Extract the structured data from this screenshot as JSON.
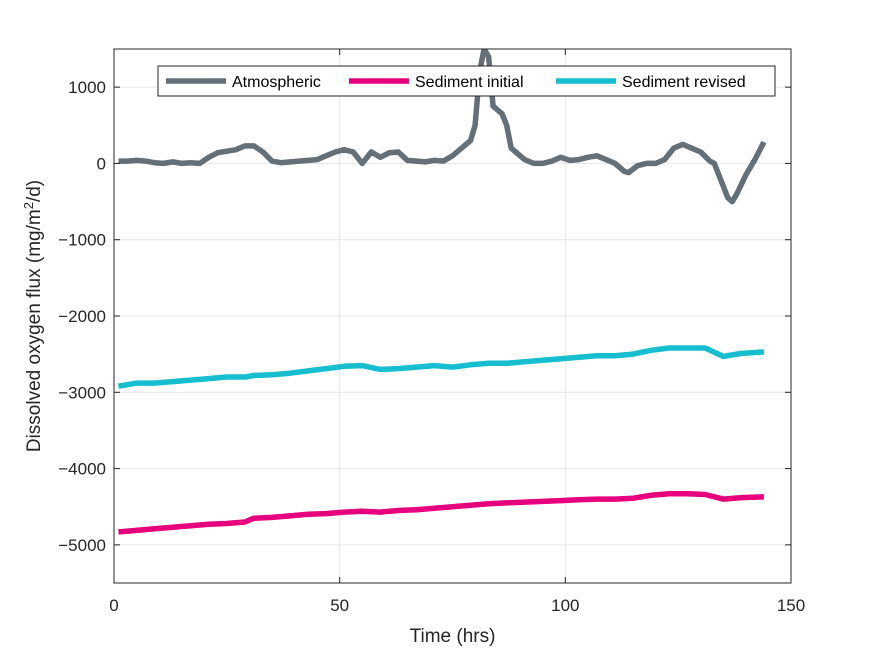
{
  "chart_data": {
    "type": "line",
    "title": "",
    "xlabel": "Time (hrs)",
    "ylabel": "Dissolved oxygen flux (mg/m²/d)",
    "xlim": [
      0,
      150
    ],
    "ylim": [
      -5500,
      1500
    ],
    "xticks": [
      0,
      50,
      100,
      150
    ],
    "yticks": [
      -5000,
      -4000,
      -3000,
      -2000,
      -1000,
      0,
      1000
    ],
    "grid": true,
    "legend_placement": "top, horizontal",
    "series": [
      {
        "name": "Atmospheric",
        "color": "#646f78",
        "x": [
          1,
          3,
          5,
          7,
          9,
          11,
          13,
          15,
          17,
          19,
          21,
          23,
          25,
          27,
          29,
          31,
          33,
          35,
          37,
          39,
          41,
          43,
          45,
          47,
          49,
          51,
          53,
          55,
          57,
          59,
          61,
          63,
          65,
          67,
          69,
          71,
          73,
          75,
          77,
          79,
          80,
          81,
          82,
          83,
          84,
          85,
          86,
          87,
          88,
          89,
          91,
          93,
          95,
          97,
          99,
          101,
          103,
          105,
          107,
          109,
          111,
          113,
          114,
          116,
          118,
          120,
          122,
          124,
          126,
          128,
          130,
          132,
          133,
          134,
          135,
          136,
          137,
          138,
          140,
          142,
          144
        ],
        "y": [
          30,
          30,
          40,
          30,
          10,
          0,
          20,
          0,
          10,
          0,
          80,
          140,
          160,
          180,
          230,
          230,
          150,
          30,
          10,
          20,
          30,
          40,
          50,
          100,
          150,
          180,
          150,
          0,
          150,
          80,
          140,
          150,
          40,
          30,
          20,
          40,
          30,
          100,
          200,
          300,
          500,
          1200,
          1500,
          1400,
          750,
          700,
          650,
          500,
          200,
          150,
          50,
          0,
          0,
          30,
          80,
          40,
          50,
          80,
          100,
          50,
          0,
          -100,
          -120,
          -30,
          0,
          0,
          50,
          200,
          250,
          200,
          150,
          30,
          0,
          -150,
          -300,
          -450,
          -500,
          -400,
          -150,
          50,
          280
        ]
      },
      {
        "name": "Sediment initial",
        "color": "#e6007e",
        "x": [
          1,
          5,
          9,
          13,
          17,
          21,
          25,
          29,
          31,
          35,
          39,
          43,
          47,
          51,
          55,
          59,
          63,
          67,
          71,
          75,
          79,
          83,
          87,
          91,
          95,
          99,
          103,
          107,
          111,
          115,
          119,
          123,
          127,
          131,
          135,
          139,
          144
        ],
        "y": [
          -4830,
          -4810,
          -4790,
          -4770,
          -4750,
          -4730,
          -4720,
          -4700,
          -4650,
          -4640,
          -4620,
          -4600,
          -4590,
          -4570,
          -4560,
          -4570,
          -4550,
          -4540,
          -4520,
          -4500,
          -4480,
          -4460,
          -4450,
          -4440,
          -4430,
          -4420,
          -4410,
          -4400,
          -4400,
          -4390,
          -4350,
          -4330,
          -4330,
          -4340,
          -4400,
          -4380,
          -4370
        ]
      },
      {
        "name": "Sediment revised",
        "color": "#17becf",
        "x": [
          1,
          5,
          9,
          13,
          17,
          21,
          25,
          29,
          31,
          35,
          39,
          43,
          47,
          51,
          55,
          59,
          63,
          67,
          71,
          75,
          79,
          83,
          87,
          91,
          95,
          99,
          103,
          107,
          111,
          115,
          119,
          123,
          127,
          131,
          135,
          139,
          144
        ],
        "y": [
          -2920,
          -2880,
          -2880,
          -2860,
          -2840,
          -2820,
          -2800,
          -2800,
          -2780,
          -2770,
          -2750,
          -2720,
          -2690,
          -2660,
          -2650,
          -2700,
          -2690,
          -2670,
          -2650,
          -2670,
          -2640,
          -2620,
          -2620,
          -2600,
          -2580,
          -2560,
          -2540,
          -2520,
          -2520,
          -2500,
          -2450,
          -2420,
          -2420,
          -2420,
          -2530,
          -2490,
          -2470
        ]
      }
    ]
  }
}
